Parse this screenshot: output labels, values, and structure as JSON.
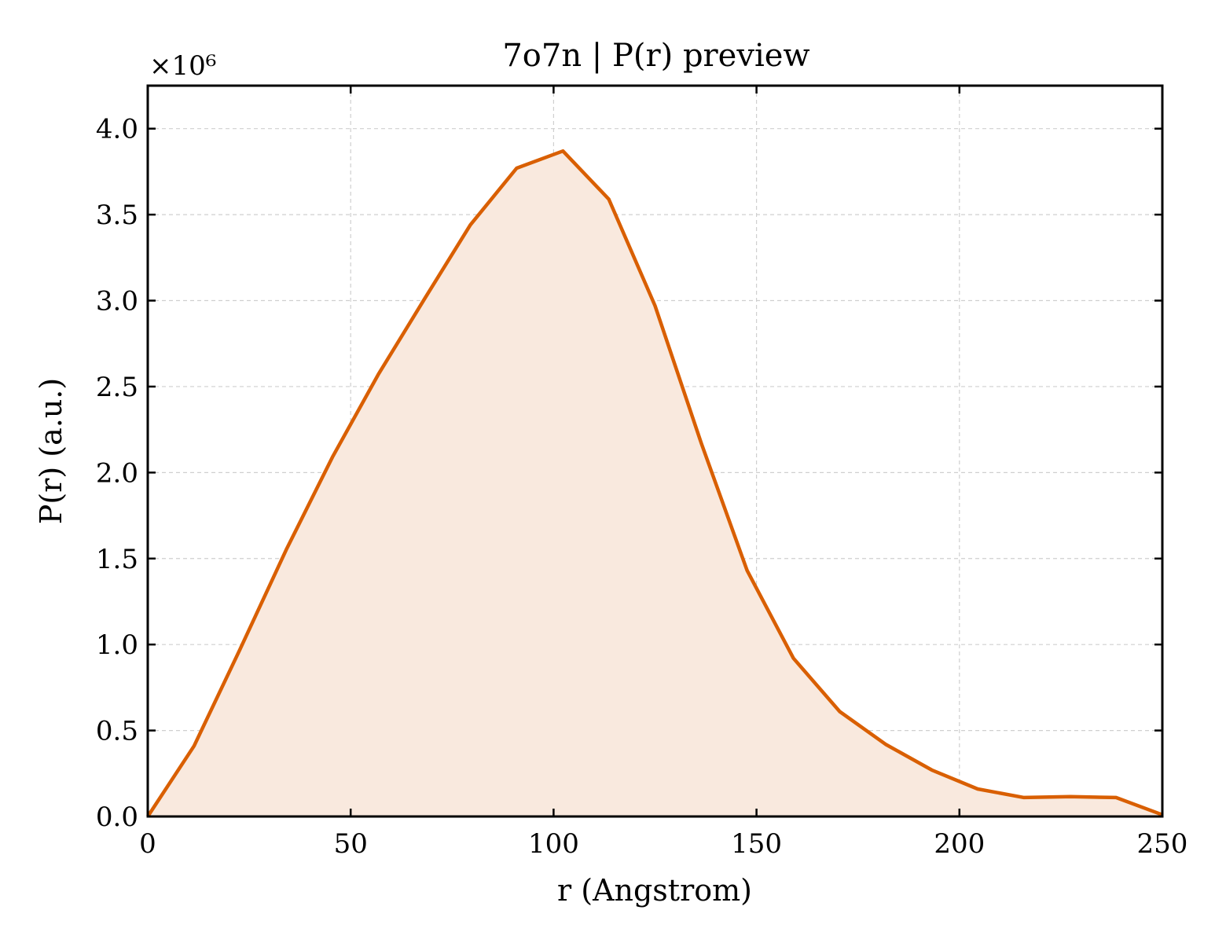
{
  "chart_data": {
    "type": "area",
    "title": "7o7n | P(r) preview",
    "xlabel": "r (Angstrom)",
    "ylabel": "P(r) (a.u.)",
    "y_multiplier_label": "×10⁶",
    "xlim": [
      0,
      250
    ],
    "ylim": [
      0,
      4.25
    ],
    "xticks": [
      0,
      50,
      100,
      150,
      200,
      250
    ],
    "xtick_labels": [
      "0",
      "50",
      "100",
      "150",
      "200",
      "250"
    ],
    "yticks": [
      0.0,
      0.5,
      1.0,
      1.5,
      2.0,
      2.5,
      3.0,
      3.5,
      4.0
    ],
    "ytick_labels": [
      "0.0",
      "0.5",
      "1.0",
      "1.5",
      "2.0",
      "2.5",
      "3.0",
      "3.5",
      "4.0"
    ],
    "grid": true,
    "series": [
      {
        "x": [
          0,
          11.4,
          22.7,
          34.1,
          45.5,
          56.8,
          68.2,
          79.5,
          90.9,
          102.3,
          113.6,
          125.0,
          136.4,
          147.7,
          159.1,
          170.5,
          181.8,
          193.2,
          204.5,
          215.9,
          227.3,
          238.6,
          250
        ],
        "values": [
          0.0,
          0.41,
          0.97,
          1.55,
          2.09,
          2.57,
          3.01,
          3.44,
          3.77,
          3.87,
          3.59,
          2.97,
          2.17,
          1.43,
          0.92,
          0.61,
          0.42,
          0.27,
          0.16,
          0.11,
          0.115,
          0.11,
          0.01
        ]
      }
    ],
    "colors": {
      "line": "#d95f02",
      "fill": "#f9e9de"
    }
  }
}
